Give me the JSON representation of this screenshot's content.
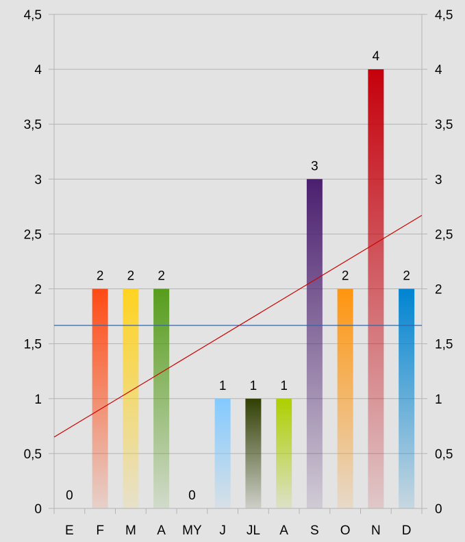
{
  "chart_data": {
    "type": "bar",
    "categories": [
      "E",
      "F",
      "M",
      "A",
      "MY",
      "J",
      "JL",
      "A",
      "S",
      "O",
      "N",
      "D"
    ],
    "values": [
      0,
      2,
      2,
      2,
      0,
      1,
      1,
      1,
      3,
      2,
      4,
      2
    ],
    "bar_colors": [
      "#cccccc",
      "#ff4a14",
      "#ffd320",
      "#579d1c",
      "#cccccc",
      "#83caff",
      "#314004",
      "#aecf00",
      "#4b1f6f",
      "#ff950e",
      "#c5000b",
      "#0084d1"
    ],
    "ylim": [
      0,
      4.5
    ],
    "y_ticks": [
      "0",
      "0,5",
      "1",
      "1,5",
      "2",
      "2,5",
      "3",
      "3,5",
      "4",
      "4,5"
    ],
    "y_ticks_right": [
      "0",
      "0,5",
      "1",
      "1,5",
      "2",
      "2,5",
      "3",
      "3,5",
      "4",
      "4,5"
    ],
    "data_labels": [
      "0",
      "2",
      "2",
      "2",
      "0",
      "1",
      "1",
      "1",
      "3",
      "2",
      "4",
      "2"
    ],
    "mean_line": {
      "value": 1.667,
      "color": "#3465a4"
    },
    "trend_line": {
      "start": 0.65,
      "end": 2.67,
      "color": "#cc0000"
    },
    "title": "",
    "xlabel": "",
    "ylabel": "",
    "grid": true,
    "legend": "none"
  }
}
